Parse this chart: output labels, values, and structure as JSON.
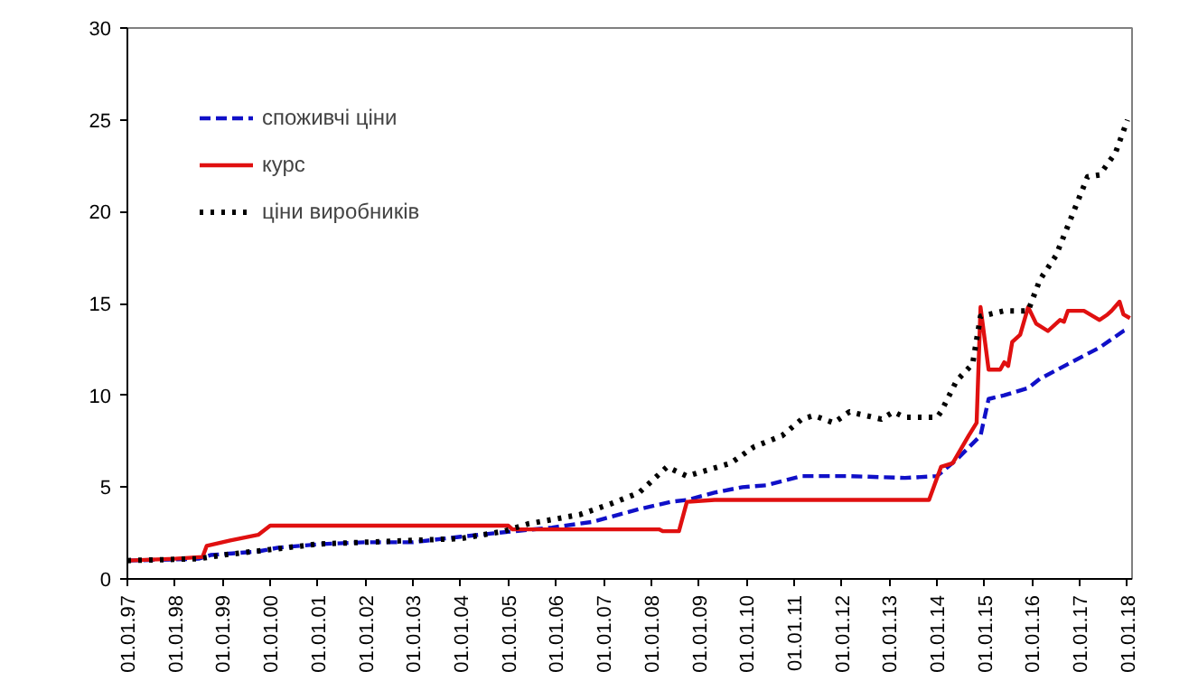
{
  "chart_data": {
    "type": "line",
    "xlim": [
      "1997-01-01",
      "2018-02-05"
    ],
    "ylim": [
      0,
      30
    ],
    "xticks": [
      {
        "value": "1997-01-01",
        "label": "01.01.97"
      },
      {
        "value": "1998-01-01",
        "label": "01.01.98"
      },
      {
        "value": "1999-01-01",
        "label": "01.01.99"
      },
      {
        "value": "2000-01-01",
        "label": "01.01.00"
      },
      {
        "value": "2001-01-01",
        "label": "01.01.01"
      },
      {
        "value": "2002-01-01",
        "label": "01.01.02"
      },
      {
        "value": "2003-01-01",
        "label": "01.01.03"
      },
      {
        "value": "2004-01-01",
        "label": "01.01.04"
      },
      {
        "value": "2005-01-01",
        "label": "01.01.05"
      },
      {
        "value": "2006-01-01",
        "label": "01.01.06"
      },
      {
        "value": "2007-01-01",
        "label": "01.01.07"
      },
      {
        "value": "2008-01-01",
        "label": "01.01.08"
      },
      {
        "value": "2009-01-01",
        "label": "01.01.09"
      },
      {
        "value": "2010-01-01",
        "label": "01.01.10"
      },
      {
        "value": "2011-01-01",
        "label": "01.01.11"
      },
      {
        "value": "2012-01-01",
        "label": "01.01.12"
      },
      {
        "value": "2013-01-01",
        "label": "01.01.13"
      },
      {
        "value": "2014-01-01",
        "label": "01.01.14"
      },
      {
        "value": "2015-01-01",
        "label": "01.01.15"
      },
      {
        "value": "2016-01-01",
        "label": "01.01.16"
      },
      {
        "value": "2017-01-01",
        "label": "01.01.17"
      },
      {
        "value": "2018-01-01",
        "label": "01.01.18"
      }
    ],
    "yticks": [
      0,
      5,
      10,
      15,
      20,
      25,
      30
    ],
    "grid": false,
    "legend": "top left",
    "series": [
      {
        "name": "споживчі ціни",
        "color": "#1010c8",
        "line_style": "dashed",
        "x": [
          "1997-01",
          "1998-07",
          "1998-10",
          "1999-10",
          "2000-03",
          "2001-02",
          "2002-01",
          "2003-01",
          "2004-01",
          "2004-10",
          "2005-12",
          "2006-10",
          "2007-10",
          "2008-06",
          "2008-10",
          "2009-05",
          "2009-12",
          "2010-06",
          "2011-03",
          "2012-03",
          "2013-05",
          "2014-01",
          "2014-06",
          "2014-12",
          "2015-02",
          "2015-06",
          "2015-12",
          "2016-03",
          "2016-10",
          "2017-06",
          "2017-12",
          "2018-01"
        ],
        "values": [
          1.0,
          1.1,
          1.3,
          1.5,
          1.7,
          1.9,
          2.0,
          2.0,
          2.3,
          2.5,
          2.8,
          3.1,
          3.8,
          4.2,
          4.3,
          4.7,
          5.0,
          5.1,
          5.6,
          5.6,
          5.5,
          5.6,
          6.5,
          7.8,
          9.8,
          10.0,
          10.4,
          10.9,
          11.7,
          12.6,
          13.5,
          13.6
        ]
      },
      {
        "name": "курс",
        "color": "#e01010",
        "line_style": "solid",
        "x": [
          "1997-01",
          "1998-01",
          "1998-08",
          "1998-09",
          "1999-03",
          "1999-10",
          "2000-01",
          "2002-01",
          "2005-01",
          "2005-02",
          "2008-03",
          "2008-04",
          "2008-08",
          "2008-10",
          "2009-05",
          "2013-11",
          "2014-02",
          "2014-05",
          "2014-09",
          "2014-11",
          "2014-12",
          "2015-02",
          "2015-05",
          "2015-06",
          "2015-07",
          "2015-08",
          "2015-10",
          "2015-12",
          "2016-02",
          "2016-05",
          "2016-08",
          "2016-09",
          "2016-10",
          "2017-02",
          "2017-06",
          "2017-08",
          "2017-09",
          "2017-11",
          "2017-12",
          "2018-01-20"
        ],
        "values": [
          1.0,
          1.1,
          1.2,
          1.8,
          2.1,
          2.4,
          2.9,
          2.9,
          2.9,
          2.7,
          2.7,
          2.6,
          2.6,
          4.2,
          4.3,
          4.3,
          6.1,
          6.3,
          7.8,
          8.5,
          14.8,
          11.4,
          11.4,
          11.8,
          11.6,
          12.9,
          13.3,
          14.8,
          13.9,
          13.5,
          14.1,
          14.0,
          14.6,
          14.6,
          14.1,
          14.4,
          14.6,
          15.1,
          14.4,
          14.2
        ]
      },
      {
        "name": "ціни виробників",
        "color": "#000000",
        "line_style": "dotted",
        "x": [
          "1997-01",
          "1998-07",
          "1999-01",
          "2000-01",
          "2001-01",
          "2002-01",
          "2003-01",
          "2004-01",
          "2004-12",
          "2005-06",
          "2006-07",
          "2007-03",
          "2007-10",
          "2008-05",
          "2008-10",
          "2009-09",
          "2010-03",
          "2010-10",
          "2011-03",
          "2011-06",
          "2011-11",
          "2012-03",
          "2012-11",
          "2013-02",
          "2013-05",
          "2014-01",
          "2014-02",
          "2014-06",
          "2014-10",
          "2014-12",
          "2015-06",
          "2015-12",
          "2016-03",
          "2016-07",
          "2017-03",
          "2017-06",
          "2017-10",
          "2018-01"
        ],
        "values": [
          1.0,
          1.1,
          1.3,
          1.6,
          1.9,
          2.0,
          2.1,
          2.2,
          2.6,
          3.0,
          3.5,
          4.1,
          4.7,
          6.1,
          5.6,
          6.3,
          7.2,
          7.8,
          8.7,
          8.9,
          8.5,
          9.1,
          8.7,
          9.1,
          8.8,
          8.8,
          9.1,
          10.8,
          11.7,
          14.3,
          14.6,
          14.6,
          16.3,
          17.6,
          21.9,
          22.0,
          23.2,
          25.0
        ]
      }
    ]
  }
}
